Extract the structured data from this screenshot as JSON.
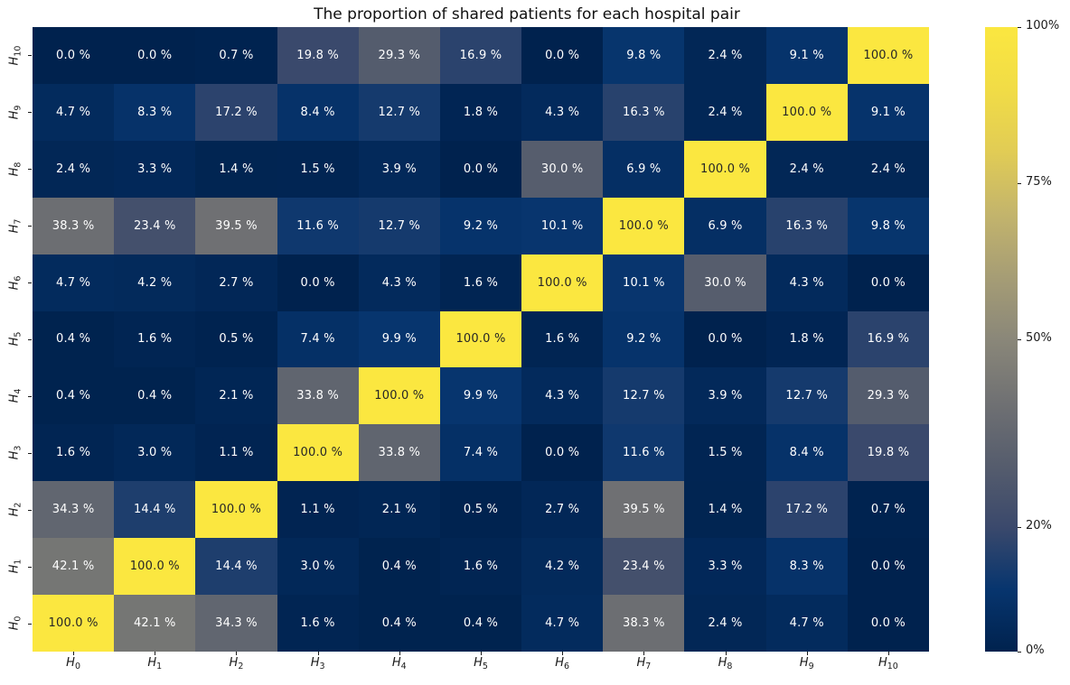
{
  "title": "The proportion of shared patients for each hospital pair",
  "chart_data": {
    "type": "heatmap",
    "title": "The proportion of shared patients for each hospital pair",
    "x_labels": [
      "H0",
      "H1",
      "H2",
      "H3",
      "H4",
      "H5",
      "H6",
      "H7",
      "H8",
      "H9",
      "H10"
    ],
    "y_labels_top_to_bottom": [
      "H10",
      "H9",
      "H8",
      "H7",
      "H6",
      "H5",
      "H4",
      "H3",
      "H2",
      "H1",
      "H0"
    ],
    "values_percent_rows_top_to_bottom": [
      [
        0.0,
        0.0,
        0.7,
        19.8,
        29.3,
        16.9,
        0.0,
        9.8,
        2.4,
        9.1,
        100.0
      ],
      [
        4.7,
        8.3,
        17.2,
        8.4,
        12.7,
        1.8,
        4.3,
        16.3,
        2.4,
        100.0,
        9.1
      ],
      [
        2.4,
        3.3,
        1.4,
        1.5,
        3.9,
        0.0,
        30.0,
        6.9,
        100.0,
        2.4,
        2.4
      ],
      [
        38.3,
        23.4,
        39.5,
        11.6,
        12.7,
        9.2,
        10.1,
        100.0,
        6.9,
        16.3,
        9.8
      ],
      [
        4.7,
        4.2,
        2.7,
        0.0,
        4.3,
        1.6,
        100.0,
        10.1,
        30.0,
        4.3,
        0.0
      ],
      [
        0.4,
        1.6,
        0.5,
        7.4,
        9.9,
        100.0,
        1.6,
        9.2,
        0.0,
        1.8,
        16.9
      ],
      [
        0.4,
        0.4,
        2.1,
        33.8,
        100.0,
        9.9,
        4.3,
        12.7,
        3.9,
        12.7,
        29.3
      ],
      [
        1.6,
        3.0,
        1.1,
        100.0,
        33.8,
        7.4,
        0.0,
        11.6,
        1.5,
        8.4,
        19.8
      ],
      [
        34.3,
        14.4,
        100.0,
        1.1,
        2.1,
        0.5,
        2.7,
        39.5,
        1.4,
        17.2,
        0.7
      ],
      [
        42.1,
        100.0,
        14.4,
        3.0,
        0.4,
        1.6,
        4.2,
        23.4,
        3.3,
        8.3,
        0.0
      ],
      [
        100.0,
        42.1,
        34.3,
        1.6,
        0.4,
        0.4,
        4.7,
        38.3,
        2.4,
        4.7,
        0.0
      ]
    ],
    "cell_value_format": "{:.1f} %",
    "vmin": 0,
    "vmax": 100,
    "colormap": {
      "name": "cividis",
      "stops": [
        "#00224e",
        "#07356e",
        "#3b496c",
        "#565d6d",
        "#707173",
        "#8a8779",
        "#a69d75",
        "#c3b46c",
        "#e1cc55",
        "#f1dc46",
        "#fbe740"
      ]
    },
    "annotation_text_light": "#ffffff",
    "annotation_text_dark": "#262626",
    "colorbar": {
      "position": "right",
      "ticks": [
        {
          "label": "100%",
          "value": 100
        },
        {
          "label": "75%",
          "value": 75
        },
        {
          "label": "50%",
          "value": 50
        },
        {
          "label": "20%",
          "value": 20
        },
        {
          "label": "0%",
          "value": 0
        }
      ]
    },
    "grid": false,
    "x_axis_label": "",
    "y_axis_label": ""
  }
}
